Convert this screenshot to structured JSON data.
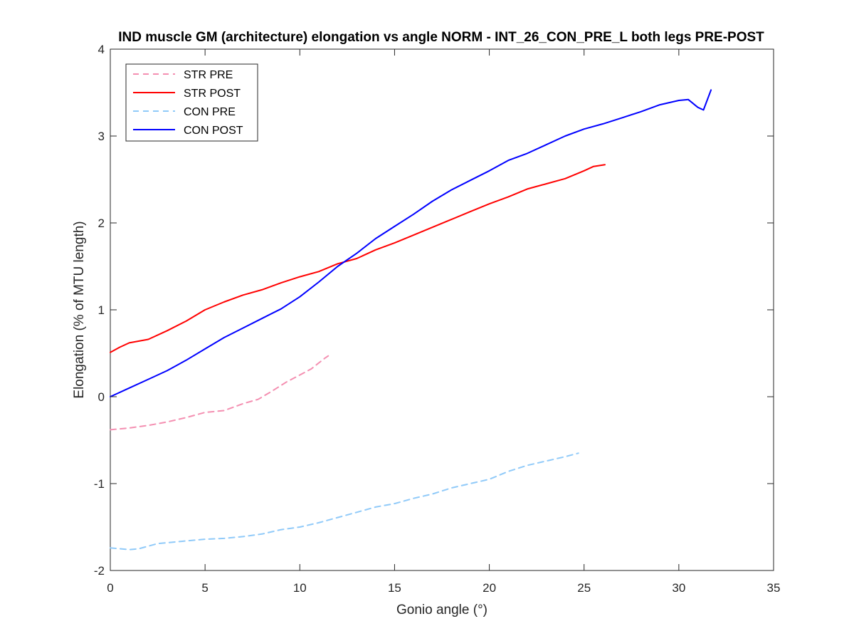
{
  "chart_data": {
    "type": "line",
    "title": "IND muscle GM (architecture) elongation vs angle NORM - INT_26_CON_PRE_L both legs PRE-POST",
    "xlabel": "Gonio angle (°)",
    "ylabel": "Elongation (% of MTU length)",
    "xlim": [
      0,
      35
    ],
    "ylim": [
      -2,
      4
    ],
    "xticks": [
      0,
      5,
      10,
      15,
      20,
      25,
      30,
      35
    ],
    "yticks": [
      -2,
      -1,
      0,
      1,
      2,
      3,
      4
    ],
    "grid": false,
    "legend_position": "top-left",
    "series": [
      {
        "name": "STR PRE",
        "color": "#f48fb1",
        "style": "dashed",
        "x": [
          0,
          1,
          2,
          3,
          4,
          5,
          6,
          7,
          7.8,
          8.5,
          9.3,
          10,
          10.6,
          11.3,
          11.5
        ],
        "y": [
          -0.38,
          -0.36,
          -0.33,
          -0.29,
          -0.24,
          -0.18,
          -0.16,
          -0.08,
          -0.03,
          0.06,
          0.17,
          0.25,
          0.32,
          0.44,
          0.47
        ]
      },
      {
        "name": "STR POST",
        "color": "#ff0000",
        "style": "solid",
        "x": [
          0,
          0.5,
          1,
          2,
          3,
          4,
          5,
          6,
          7,
          8,
          9,
          10,
          11,
          12,
          13,
          14,
          15,
          16,
          17,
          18,
          19,
          20,
          21,
          22,
          23,
          24,
          25,
          25.5,
          26.1
        ],
        "y": [
          0.51,
          0.57,
          0.62,
          0.66,
          0.76,
          0.87,
          1.0,
          1.09,
          1.17,
          1.23,
          1.31,
          1.38,
          1.44,
          1.53,
          1.59,
          1.69,
          1.77,
          1.86,
          1.95,
          2.04,
          2.13,
          2.22,
          2.3,
          2.39,
          2.45,
          2.51,
          2.6,
          2.65,
          2.67
        ]
      },
      {
        "name": "CON PRE",
        "color": "#90caf9",
        "style": "dashed",
        "x": [
          0,
          1,
          1.5,
          2.5,
          4,
          5,
          6,
          7,
          8,
          9,
          10,
          11,
          12,
          13,
          14,
          15,
          16,
          17,
          18,
          19,
          20,
          21,
          22,
          23,
          24,
          24.7
        ],
        "y": [
          -1.74,
          -1.76,
          -1.75,
          -1.69,
          -1.66,
          -1.64,
          -1.63,
          -1.61,
          -1.58,
          -1.53,
          -1.5,
          -1.45,
          -1.39,
          -1.33,
          -1.27,
          -1.23,
          -1.17,
          -1.12,
          -1.05,
          -1.0,
          -0.95,
          -0.86,
          -0.79,
          -0.74,
          -0.69,
          -0.65
        ]
      },
      {
        "name": "CON POST",
        "color": "#0000ff",
        "style": "solid",
        "x": [
          0,
          1,
          2,
          3,
          4,
          5,
          6,
          7,
          8,
          9,
          10,
          11,
          12,
          13,
          14,
          15,
          16,
          17,
          18,
          19,
          20,
          21,
          22,
          23,
          24,
          25,
          26,
          27,
          28,
          29,
          30,
          30.5,
          31,
          31.3,
          31.7
        ],
        "y": [
          0.0,
          0.1,
          0.2,
          0.3,
          0.42,
          0.55,
          0.68,
          0.79,
          0.9,
          1.01,
          1.15,
          1.32,
          1.5,
          1.65,
          1.82,
          1.96,
          2.1,
          2.25,
          2.38,
          2.49,
          2.6,
          2.72,
          2.8,
          2.9,
          3.0,
          3.08,
          3.14,
          3.21,
          3.28,
          3.36,
          3.41,
          3.42,
          3.33,
          3.3,
          3.53
        ]
      }
    ]
  }
}
